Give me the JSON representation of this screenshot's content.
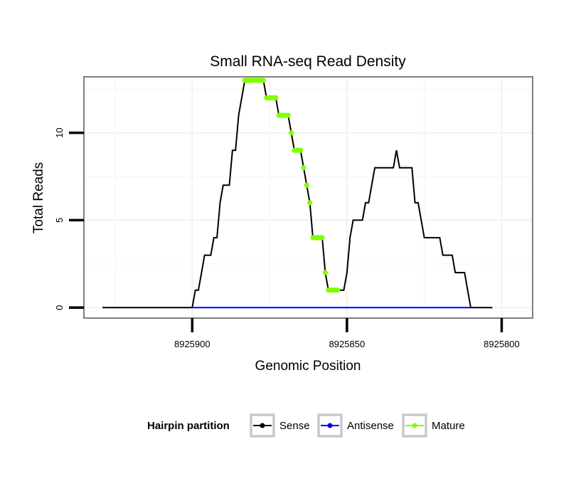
{
  "chart_data": {
    "type": "line",
    "title": "Small RNA-seq Read Density",
    "xlabel": "Genomic Position",
    "ylabel": "Total Reads",
    "xlim": [
      8925935,
      8925790
    ],
    "x_reversed": true,
    "ylim": [
      -0.6,
      13.2
    ],
    "xticks": [
      8925900,
      8925850,
      8925800
    ],
    "xtick_labels": [
      "8925900",
      "8925850",
      "8925800"
    ],
    "yticks": [
      0,
      5,
      10
    ],
    "ytick_labels": [
      "0",
      "5",
      "10"
    ],
    "grid": true,
    "legend": {
      "title": "Hairpin partition",
      "position": "bottom",
      "entries": [
        {
          "label": "Sense",
          "color": "#000000"
        },
        {
          "label": "Antisense",
          "color": "#0000ff"
        },
        {
          "label": "Mature",
          "color": "#7fff00"
        }
      ]
    },
    "series": [
      {
        "name": "Sense",
        "color": "#000000",
        "points": [
          [
            8925929,
            0
          ],
          [
            8925900,
            0
          ],
          [
            8925899,
            1
          ],
          [
            8925898,
            1
          ],
          [
            8925897,
            2
          ],
          [
            8925896,
            3
          ],
          [
            8925894,
            3
          ],
          [
            8925893,
            4
          ],
          [
            8925892,
            4
          ],
          [
            8925891,
            6
          ],
          [
            8925890,
            7
          ],
          [
            8925888,
            7
          ],
          [
            8925887,
            9
          ],
          [
            8925886,
            9
          ],
          [
            8925885,
            11
          ],
          [
            8925884,
            12
          ],
          [
            8925883,
            13
          ],
          [
            8925877,
            13
          ],
          [
            8925876,
            12
          ],
          [
            8925873,
            12
          ],
          [
            8925872,
            11
          ],
          [
            8925869,
            11
          ],
          [
            8925868,
            10
          ],
          [
            8925867,
            9
          ],
          [
            8925865,
            9
          ],
          [
            8925864,
            8
          ],
          [
            8925863,
            7
          ],
          [
            8925862,
            6
          ],
          [
            8925861,
            4
          ],
          [
            8925858,
            4
          ],
          [
            8925857,
            2
          ],
          [
            8925856,
            1
          ],
          [
            8925851,
            1
          ],
          [
            8925850,
            2
          ],
          [
            8925849,
            4
          ],
          [
            8925848,
            5
          ],
          [
            8925845,
            5
          ],
          [
            8925844,
            6
          ],
          [
            8925843,
            6
          ],
          [
            8925842,
            7
          ],
          [
            8925841,
            8
          ],
          [
            8925835,
            8
          ],
          [
            8925834,
            9
          ],
          [
            8925833,
            8
          ],
          [
            8925829,
            8
          ],
          [
            8925828,
            6
          ],
          [
            8925827,
            6
          ],
          [
            8925826,
            5
          ],
          [
            8925825,
            4
          ],
          [
            8925820,
            4
          ],
          [
            8925819,
            3
          ],
          [
            8925816,
            3
          ],
          [
            8925815,
            2
          ],
          [
            8925812,
            2
          ],
          [
            8925811,
            1
          ],
          [
            8925810,
            0
          ],
          [
            8925803,
            0
          ]
        ]
      },
      {
        "name": "Antisense",
        "color": "#0000ff",
        "points": [
          [
            8925900,
            0
          ],
          [
            8925810,
            0
          ]
        ]
      },
      {
        "name": "Mature",
        "color": "#7fff00",
        "points": [
          [
            8925883,
            13
          ],
          [
            8925882.5,
            13
          ],
          [
            8925882,
            13
          ],
          [
            8925881.5,
            13
          ],
          [
            8925881,
            13
          ],
          [
            8925880.5,
            13
          ],
          [
            8925880,
            13
          ],
          [
            8925879.5,
            13
          ],
          [
            8925879,
            13
          ],
          [
            8925878.5,
            13
          ],
          [
            8925878,
            13
          ],
          [
            8925877.5,
            13
          ],
          [
            8925877,
            13
          ],
          [
            8925876,
            12
          ],
          [
            8925875.5,
            12
          ],
          [
            8925875,
            12
          ],
          [
            8925874.5,
            12
          ],
          [
            8925874,
            12
          ],
          [
            8925873.5,
            12
          ],
          [
            8925873,
            12
          ],
          [
            8925872,
            11
          ],
          [
            8925871.5,
            11
          ],
          [
            8925871,
            11
          ],
          [
            8925870.5,
            11
          ],
          [
            8925870,
            11
          ],
          [
            8925869.5,
            11
          ],
          [
            8925869,
            11
          ],
          [
            8925868,
            10
          ],
          [
            8925867,
            9
          ],
          [
            8925866.5,
            9
          ],
          [
            8925866,
            9
          ],
          [
            8925865.5,
            9
          ],
          [
            8925865,
            9
          ],
          [
            8925864,
            8
          ],
          [
            8925863,
            7
          ],
          [
            8925862,
            6
          ],
          [
            8925861,
            4
          ],
          [
            8925860.5,
            4
          ],
          [
            8925860,
            4
          ],
          [
            8925859.5,
            4
          ],
          [
            8925859,
            4
          ],
          [
            8925858.5,
            4
          ],
          [
            8925858,
            4
          ],
          [
            8925857,
            2
          ],
          [
            8925856,
            1
          ],
          [
            8925855.5,
            1
          ],
          [
            8925855,
            1
          ],
          [
            8925854.5,
            1
          ],
          [
            8925854,
            1
          ],
          [
            8925853.5,
            1
          ],
          [
            8925853,
            1
          ]
        ]
      }
    ]
  }
}
